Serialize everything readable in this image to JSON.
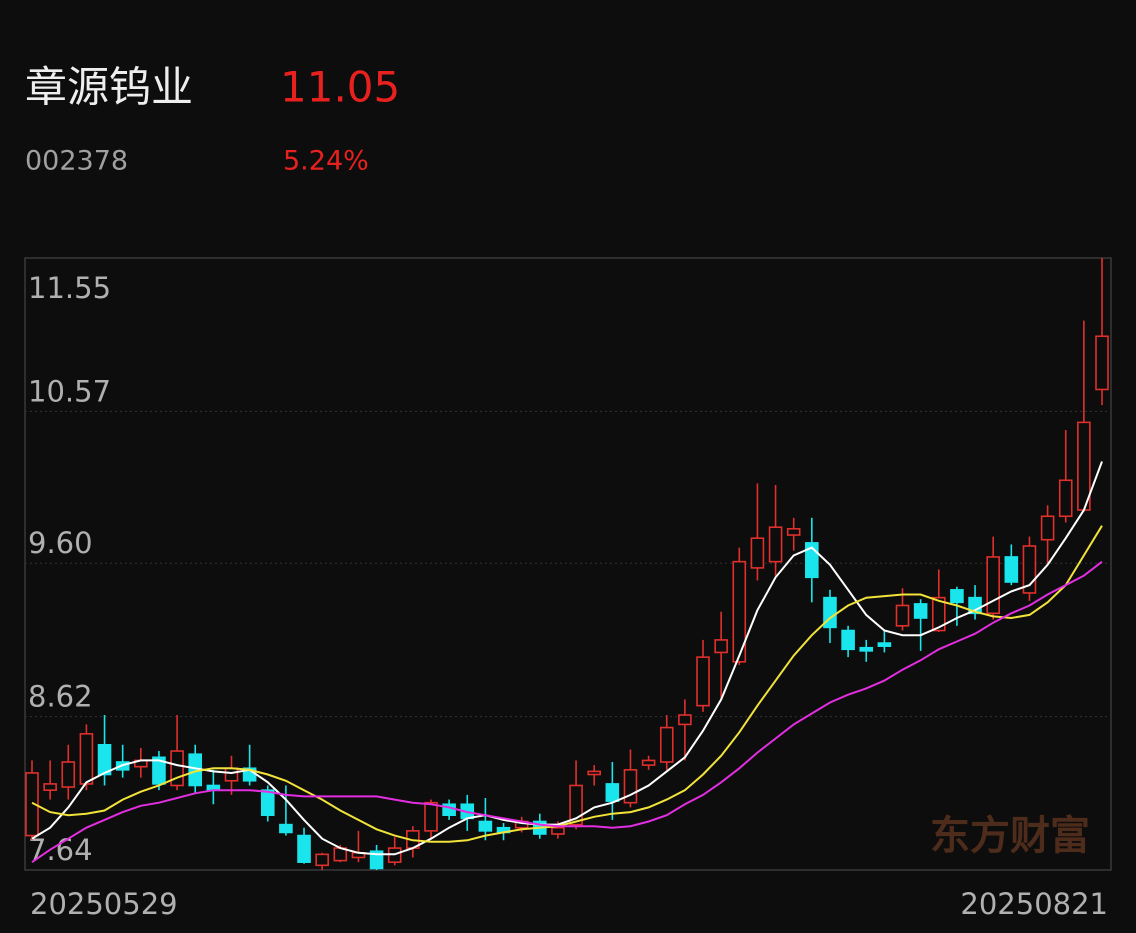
{
  "header": {
    "name": "章源钨业",
    "price": "11.05",
    "code": "002378",
    "change": "5.24%"
  },
  "watermark": "东方财富",
  "chart_data": {
    "type": "candlestick",
    "categories": [
      "20250529",
      null,
      null,
      null,
      null,
      null,
      null,
      null,
      null,
      null,
      null,
      null,
      null,
      null,
      null,
      null,
      null,
      null,
      null,
      null,
      null,
      null,
      null,
      null,
      null,
      null,
      null,
      null,
      null,
      null,
      null,
      null,
      null,
      null,
      null,
      null,
      null,
      null,
      null,
      null,
      null,
      null,
      null,
      null,
      null,
      null,
      null,
      null,
      null,
      null,
      null,
      null,
      null,
      null,
      null,
      null,
      null,
      null,
      null,
      "20250821"
    ],
    "open": [
      7.86,
      8.15,
      8.17,
      8.19,
      8.44,
      8.33,
      8.3,
      8.36,
      8.18,
      8.38,
      8.18,
      8.21,
      8.29,
      8.15,
      7.93,
      7.86,
      7.67,
      7.7,
      7.72,
      7.76,
      7.69,
      7.78,
      7.89,
      8.06,
      8.06,
      7.95,
      7.91,
      7.91,
      7.95,
      7.87,
      7.93,
      8.25,
      8.19,
      8.07,
      8.31,
      8.33,
      8.57,
      8.69,
      9.03,
      8.97,
      9.57,
      9.61,
      9.78,
      9.73,
      9.38,
      9.17,
      9.06,
      9.09,
      9.2,
      9.34,
      9.17,
      9.43,
      9.38,
      9.28,
      9.64,
      9.41,
      9.75,
      9.9,
      9.94,
      10.71
    ],
    "high": [
      8.34,
      8.34,
      8.44,
      8.57,
      8.63,
      8.44,
      8.42,
      8.4,
      8.63,
      8.44,
      8.28,
      8.37,
      8.44,
      8.18,
      8.18,
      7.91,
      7.75,
      7.8,
      7.89,
      7.8,
      7.85,
      7.92,
      8.09,
      8.09,
      8.12,
      8.1,
      7.94,
      7.98,
      8.0,
      7.95,
      8.34,
      8.31,
      8.33,
      8.41,
      8.37,
      8.63,
      8.73,
      9.11,
      9.29,
      9.7,
      10.11,
      10.1,
      9.89,
      9.89,
      9.43,
      9.2,
      9.11,
      9.17,
      9.44,
      9.37,
      9.56,
      9.45,
      9.46,
      9.77,
      9.72,
      9.77,
      9.97,
      10.45,
      11.15,
      11.55
    ],
    "low": [
      7.83,
      8.09,
      8.09,
      8.15,
      8.18,
      8.23,
      8.23,
      8.15,
      8.15,
      8.13,
      8.06,
      8.12,
      8.18,
      7.95,
      7.86,
      7.68,
      7.64,
      7.69,
      7.69,
      7.64,
      7.67,
      7.72,
      7.84,
      7.96,
      7.89,
      7.83,
      7.83,
      7.88,
      7.84,
      7.84,
      7.9,
      8.18,
      7.96,
      8.04,
      8.28,
      8.28,
      8.34,
      8.65,
      8.73,
      8.95,
      9.49,
      9.52,
      9.68,
      9.35,
      9.09,
      9.0,
      8.97,
      9.03,
      9.17,
      9.04,
      9.16,
      9.2,
      9.24,
      9.24,
      9.46,
      9.36,
      9.6,
      9.86,
      9.93,
      10.61
    ],
    "close": [
      8.26,
      8.19,
      8.33,
      8.51,
      8.25,
      8.28,
      8.34,
      8.19,
      8.4,
      8.18,
      8.15,
      8.29,
      8.21,
      7.99,
      7.88,
      7.69,
      7.74,
      7.78,
      7.75,
      7.65,
      7.78,
      7.89,
      8.07,
      7.99,
      7.97,
      7.89,
      7.88,
      7.95,
      7.87,
      7.91,
      8.18,
      8.27,
      8.08,
      8.28,
      8.34,
      8.55,
      8.63,
      9.0,
      9.11,
      9.61,
      9.76,
      9.83,
      9.82,
      9.51,
      9.19,
      9.05,
      9.04,
      9.07,
      9.33,
      9.25,
      9.38,
      9.35,
      9.28,
      9.64,
      9.48,
      9.71,
      9.9,
      10.13,
      10.5,
      11.05
    ],
    "up_color": "#e0302c",
    "down_color": "#1ae4ec",
    "series": [
      {
        "color": "#ffffff",
        "values": [
          7.84,
          7.91,
          8.04,
          8.2,
          8.26,
          8.31,
          8.34,
          8.34,
          8.31,
          8.29,
          8.27,
          8.26,
          8.28,
          8.2,
          8.09,
          7.96,
          7.84,
          7.78,
          7.75,
          7.74,
          7.74,
          7.78,
          7.84,
          7.91,
          7.97,
          7.99,
          7.96,
          7.94,
          7.93,
          7.93,
          7.97,
          8.04,
          8.07,
          8.12,
          8.18,
          8.27,
          8.36,
          8.53,
          8.73,
          9.01,
          9.3,
          9.51,
          9.65,
          9.7,
          9.59,
          9.43,
          9.27,
          9.17,
          9.14,
          9.14,
          9.19,
          9.25,
          9.3,
          9.36,
          9.42,
          9.46,
          9.59,
          9.76,
          9.94,
          10.25
        ]
      },
      {
        "color": "#f2e33a",
        "values": [
          8.07,
          8.01,
          7.99,
          8.0,
          8.02,
          8.09,
          8.14,
          8.18,
          8.23,
          8.27,
          8.29,
          8.29,
          8.28,
          8.25,
          8.21,
          8.15,
          8.09,
          8.02,
          7.96,
          7.9,
          7.86,
          7.83,
          7.82,
          7.82,
          7.83,
          7.86,
          7.88,
          7.9,
          7.91,
          7.92,
          7.95,
          7.98,
          8.0,
          8.01,
          8.04,
          8.09,
          8.15,
          8.25,
          8.37,
          8.52,
          8.69,
          8.85,
          9.01,
          9.14,
          9.25,
          9.33,
          9.38,
          9.39,
          9.4,
          9.4,
          9.36,
          9.33,
          9.29,
          9.26,
          9.25,
          9.27,
          9.35,
          9.46,
          9.65,
          9.84
        ]
      },
      {
        "color": "#e22ee0",
        "values": [
          7.69,
          7.77,
          7.84,
          7.91,
          7.96,
          8.01,
          8.05,
          8.07,
          8.1,
          8.13,
          8.15,
          8.15,
          8.15,
          8.14,
          8.12,
          8.11,
          8.11,
          8.11,
          8.11,
          8.11,
          8.09,
          8.07,
          8.06,
          8.04,
          8.01,
          7.99,
          7.97,
          7.95,
          7.93,
          7.92,
          7.92,
          7.92,
          7.91,
          7.92,
          7.95,
          7.99,
          8.06,
          8.12,
          8.2,
          8.29,
          8.39,
          8.48,
          8.57,
          8.64,
          8.71,
          8.76,
          8.8,
          8.85,
          8.92,
          8.98,
          9.05,
          9.1,
          9.15,
          9.22,
          9.28,
          9.33,
          9.4,
          9.46,
          9.52,
          9.61
        ]
      }
    ],
    "ylim": [
      7.64,
      11.55
    ],
    "yticks": [
      11.55,
      10.57,
      {
        "value": 9.6,
        "label": "9.60"
      },
      8.62,
      7.64
    ],
    "grid": true
  }
}
